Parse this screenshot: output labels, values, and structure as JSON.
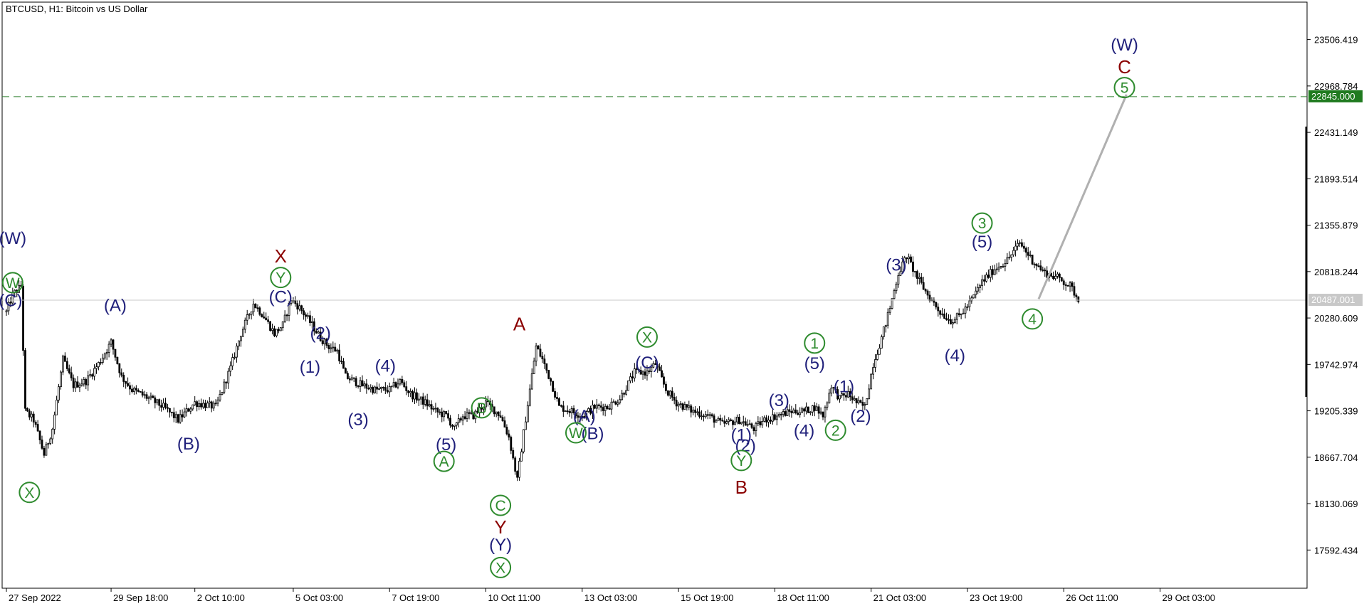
{
  "header": {
    "title": "BTCUSD, H1:  Bitcoin vs US Dollar"
  },
  "colors": {
    "background": "#ffffff",
    "frame": "#000000",
    "candle": "#000000",
    "target_line": "#2f7f2f",
    "current_line": "#c8c8c8",
    "projection": "#b0b0b0",
    "wave_blue": "#1f1f7a",
    "wave_green": "#2e8b2e",
    "wave_red": "#8b0000",
    "target_badge": "#1f7a1f",
    "current_badge": "#c8c8c8"
  },
  "chart_data": {
    "type": "candlestick",
    "title": "BTCUSD, H1:  Bitcoin vs US Dollar",
    "symbol": "BTCUSD",
    "timeframe": "H1",
    "ylim": [
      17150,
      23940
    ],
    "y_ticks": [
      {
        "value": 23506.419,
        "label": "23506.419"
      },
      {
        "value": 22968.784,
        "label": "22968.784"
      },
      {
        "value": 22431.149,
        "label": "22431.149"
      },
      {
        "value": 21893.514,
        "label": "21893.514"
      },
      {
        "value": 21355.879,
        "label": "21355.879"
      },
      {
        "value": 20818.244,
        "label": "20818.244"
      },
      {
        "value": 20280.609,
        "label": "20280.609"
      },
      {
        "value": 19742.974,
        "label": "19742.974"
      },
      {
        "value": 19205.339,
        "label": "19205.339"
      },
      {
        "value": 18667.704,
        "label": "18667.704"
      },
      {
        "value": 18130.069,
        "label": "18130.069"
      },
      {
        "value": 17592.434,
        "label": "17592.434"
      }
    ],
    "x_ticks": [
      {
        "t": 0,
        "label": "27 Sep 2022"
      },
      {
        "t": 50,
        "label": "29 Sep 18:00"
      },
      {
        "t": 90,
        "label": "2 Oct 10:00"
      },
      {
        "t": 137,
        "label": "5 Oct 03:00"
      },
      {
        "t": 183,
        "label": "7 Oct 19:00"
      },
      {
        "t": 229,
        "label": "10 Oct 11:00"
      },
      {
        "t": 275,
        "label": "13 Oct 03:00"
      },
      {
        "t": 321,
        "label": "15 Oct 19:00"
      },
      {
        "t": 367,
        "label": "18 Oct 11:00"
      },
      {
        "t": 413,
        "label": "21 Oct 03:00"
      },
      {
        "t": 459,
        "label": "23 Oct 19:00"
      },
      {
        "t": 505,
        "label": "26 Oct 11:00"
      },
      {
        "t": 551,
        "label": "29 Oct 03:00"
      }
    ],
    "target_level": {
      "value": 22845.0,
      "label": "22845.000"
    },
    "current_level": {
      "value": 20487.001,
      "label": "20487.001"
    },
    "price_path": [
      [
        0,
        20350
      ],
      [
        3,
        20550
      ],
      [
        7,
        20650
      ],
      [
        9,
        19200
      ],
      [
        13,
        19100
      ],
      [
        18,
        18700
      ],
      [
        22,
        19000
      ],
      [
        27,
        19800
      ],
      [
        32,
        19500
      ],
      [
        38,
        19550
      ],
      [
        44,
        19750
      ],
      [
        50,
        20000
      ],
      [
        55,
        19600
      ],
      [
        60,
        19450
      ],
      [
        68,
        19350
      ],
      [
        75,
        19250
      ],
      [
        82,
        19100
      ],
      [
        90,
        19300
      ],
      [
        100,
        19250
      ],
      [
        107,
        19700
      ],
      [
        112,
        20100
      ],
      [
        118,
        20450
      ],
      [
        123,
        20300
      ],
      [
        128,
        20100
      ],
      [
        132,
        20200
      ],
      [
        136,
        20500
      ],
      [
        140,
        20400
      ],
      [
        146,
        20200
      ],
      [
        150,
        20050
      ],
      [
        154,
        19950
      ],
      [
        158,
        19900
      ],
      [
        162,
        19600
      ],
      [
        166,
        19550
      ],
      [
        170,
        19500
      ],
      [
        176,
        19450
      ],
      [
        183,
        19450
      ],
      [
        188,
        19550
      ],
      [
        193,
        19400
      ],
      [
        200,
        19300
      ],
      [
        205,
        19200
      ],
      [
        210,
        19150
      ],
      [
        214,
        19000
      ],
      [
        218,
        19150
      ],
      [
        223,
        19150
      ],
      [
        229,
        19300
      ],
      [
        236,
        19150
      ],
      [
        240,
        18900
      ],
      [
        244,
        18400
      ],
      [
        247,
        18950
      ],
      [
        250,
        19450
      ],
      [
        253,
        19950
      ],
      [
        256,
        19800
      ],
      [
        260,
        19550
      ],
      [
        264,
        19250
      ],
      [
        270,
        19200
      ],
      [
        275,
        19150
      ],
      [
        281,
        19250
      ],
      [
        287,
        19250
      ],
      [
        293,
        19350
      ],
      [
        300,
        19650
      ],
      [
        306,
        19650
      ],
      [
        310,
        19750
      ],
      [
        315,
        19450
      ],
      [
        320,
        19300
      ],
      [
        328,
        19200
      ],
      [
        335,
        19150
      ],
      [
        342,
        19050
      ],
      [
        350,
        19100
      ],
      [
        357,
        19000
      ],
      [
        362,
        19100
      ],
      [
        368,
        19150
      ],
      [
        375,
        19200
      ],
      [
        381,
        19200
      ],
      [
        386,
        19250
      ],
      [
        390,
        19150
      ],
      [
        394,
        19500
      ],
      [
        398,
        19350
      ],
      [
        402,
        19400
      ],
      [
        406,
        19300
      ],
      [
        410,
        19250
      ],
      [
        414,
        19750
      ],
      [
        418,
        20050
      ],
      [
        422,
        20400
      ],
      [
        426,
        20800
      ],
      [
        430,
        21000
      ],
      [
        435,
        20750
      ],
      [
        440,
        20550
      ],
      [
        446,
        20350
      ],
      [
        451,
        20250
      ],
      [
        455,
        20300
      ],
      [
        460,
        20450
      ],
      [
        466,
        20700
      ],
      [
        472,
        20850
      ],
      [
        478,
        20950
      ],
      [
        484,
        21150
      ],
      [
        490,
        20950
      ],
      [
        496,
        20800
      ],
      [
        502,
        20750
      ],
      [
        508,
        20650
      ],
      [
        512,
        20500
      ]
    ],
    "wave_labels": [
      {
        "text": "(W)",
        "t": 3,
        "price": 21200,
        "color": "blue",
        "circled": false
      },
      {
        "text": "(C)",
        "t": 2,
        "price": 20480,
        "color": "blue",
        "circled": false
      },
      {
        "text": "W",
        "t": 3,
        "price": 20690,
        "color": "green",
        "circled": true
      },
      {
        "text": "X",
        "t": 11,
        "price": 18260,
        "color": "green",
        "circled": true
      },
      {
        "text": "(A)",
        "t": 52,
        "price": 20420,
        "color": "blue",
        "circled": false
      },
      {
        "text": "(B)",
        "t": 87,
        "price": 18820,
        "color": "blue",
        "circled": false
      },
      {
        "text": "X",
        "t": 131,
        "price": 21000,
        "color": "red",
        "circled": false
      },
      {
        "text": "Y",
        "t": 131,
        "price": 20750,
        "color": "green",
        "circled": true
      },
      {
        "text": "(C)",
        "t": 131,
        "price": 20520,
        "color": "blue",
        "circled": false
      },
      {
        "text": "(2)",
        "t": 150,
        "price": 20100,
        "color": "blue",
        "circled": false
      },
      {
        "text": "(1)",
        "t": 145,
        "price": 19710,
        "color": "blue",
        "circled": false
      },
      {
        "text": "(3)",
        "t": 168,
        "price": 19100,
        "color": "blue",
        "circled": false
      },
      {
        "text": "(4)",
        "t": 181,
        "price": 19720,
        "color": "blue",
        "circled": false
      },
      {
        "text": "(5)",
        "t": 210,
        "price": 18810,
        "color": "blue",
        "circled": false
      },
      {
        "text": "A",
        "t": 209,
        "price": 18620,
        "color": "green",
        "circled": true
      },
      {
        "text": "B",
        "t": 227,
        "price": 19240,
        "color": "green",
        "circled": true
      },
      {
        "text": "A",
        "t": 245,
        "price": 20210,
        "color": "red",
        "circled": false
      },
      {
        "text": "C",
        "t": 236,
        "price": 18110,
        "color": "green",
        "circled": true
      },
      {
        "text": "Y",
        "t": 236,
        "price": 17860,
        "color": "red",
        "circled": false
      },
      {
        "text": "(Y)",
        "t": 236,
        "price": 17650,
        "color": "blue",
        "circled": false
      },
      {
        "text": "X",
        "t": 236,
        "price": 17390,
        "color": "green",
        "circled": true
      },
      {
        "text": "(A)",
        "t": 276,
        "price": 19140,
        "color": "blue",
        "circled": false
      },
      {
        "text": "(B)",
        "t": 280,
        "price": 18940,
        "color": "blue",
        "circled": false
      },
      {
        "text": "W",
        "t": 272,
        "price": 18950,
        "color": "green",
        "circled": true
      },
      {
        "text": "X",
        "t": 306,
        "price": 20060,
        "color": "green",
        "circled": true
      },
      {
        "text": "(C)",
        "t": 306,
        "price": 19760,
        "color": "blue",
        "circled": false
      },
      {
        "text": "(1)",
        "t": 351,
        "price": 18920,
        "color": "blue",
        "circled": false
      },
      {
        "text": "(2)",
        "t": 353,
        "price": 18800,
        "color": "blue",
        "circled": false
      },
      {
        "text": "Y",
        "t": 351,
        "price": 18630,
        "color": "green",
        "circled": true
      },
      {
        "text": "B",
        "t": 351,
        "price": 18320,
        "color": "red",
        "circled": false
      },
      {
        "text": "(3)",
        "t": 369,
        "price": 19320,
        "color": "blue",
        "circled": false
      },
      {
        "text": "(4)",
        "t": 381,
        "price": 18970,
        "color": "blue",
        "circled": false
      },
      {
        "text": "1",
        "t": 386,
        "price": 19990,
        "color": "green",
        "circled": true
      },
      {
        "text": "(5)",
        "t": 386,
        "price": 19750,
        "color": "blue",
        "circled": false
      },
      {
        "text": "(1)",
        "t": 400,
        "price": 19480,
        "color": "blue",
        "circled": false
      },
      {
        "text": "2",
        "t": 396,
        "price": 18980,
        "color": "green",
        "circled": true
      },
      {
        "text": "(2)",
        "t": 408,
        "price": 19140,
        "color": "blue",
        "circled": false
      },
      {
        "text": "(3)",
        "t": 425,
        "price": 20890,
        "color": "blue",
        "circled": false
      },
      {
        "text": "(4)",
        "t": 453,
        "price": 19840,
        "color": "blue",
        "circled": false
      },
      {
        "text": "3",
        "t": 466,
        "price": 21380,
        "color": "green",
        "circled": true
      },
      {
        "text": "(5)",
        "t": 466,
        "price": 21160,
        "color": "blue",
        "circled": false
      },
      {
        "text": "4",
        "t": 490,
        "price": 20270,
        "color": "green",
        "circled": true
      },
      {
        "text": "(W)",
        "t": 534,
        "price": 23440,
        "color": "blue",
        "circled": false
      },
      {
        "text": "C",
        "t": 534,
        "price": 23190,
        "color": "red",
        "circled": false
      },
      {
        "text": "5",
        "t": 534,
        "price": 22950,
        "color": "green",
        "circled": true
      }
    ],
    "projection": {
      "from": {
        "t": 493,
        "price": 20500
      },
      "to": {
        "t": 535,
        "price": 22870
      }
    },
    "grid": false
  }
}
